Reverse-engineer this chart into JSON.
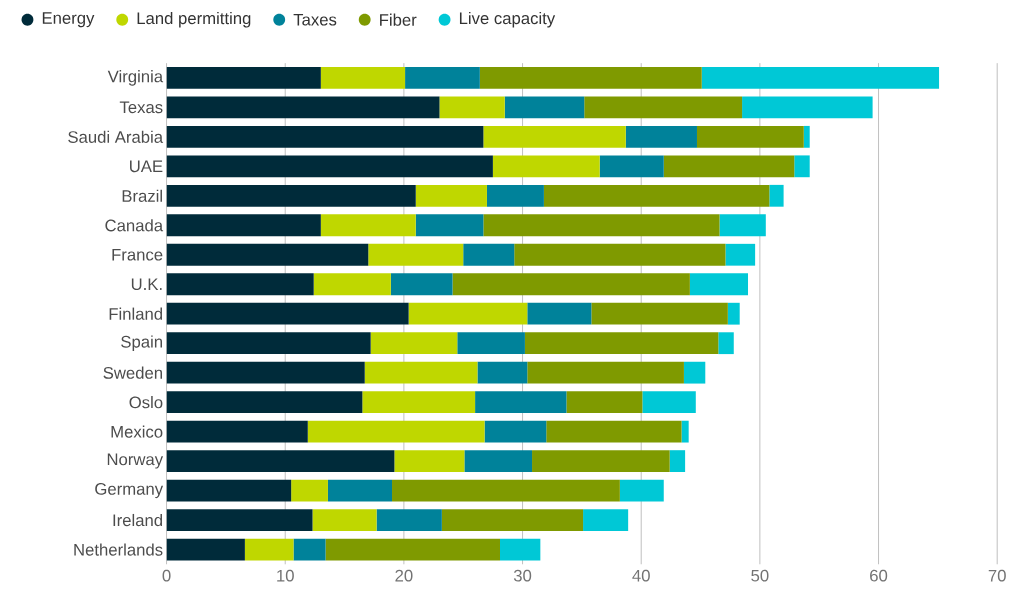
{
  "chart_data": {
    "type": "bar",
    "orientation": "horizontal",
    "stacked": true,
    "categories": [
      "Virginia",
      "Texas",
      "Saudi Arabia",
      "UAE",
      "Brazil",
      "Canada",
      "France",
      "U.K.",
      "Finland",
      "Spain",
      "Sweden",
      "Oslo",
      "Mexico",
      "Norway",
      "Germany",
      "Ireland",
      "Netherlands"
    ],
    "series": [
      {
        "name": "Energy",
        "color": "#002b3a",
        "values": [
          13.0,
          23.0,
          26.7,
          27.5,
          21.0,
          13.0,
          17.0,
          12.4,
          20.4,
          17.2,
          16.7,
          16.5,
          11.9,
          19.2,
          10.5,
          12.3,
          6.6
        ]
      },
      {
        "name": "Land permitting",
        "color": "#bfd700",
        "values": [
          7.1,
          5.5,
          12.0,
          9.0,
          6.0,
          8.0,
          8.0,
          6.5,
          10.0,
          7.3,
          9.5,
          9.5,
          14.9,
          5.9,
          3.1,
          5.4,
          4.1
        ]
      },
      {
        "name": "Taxes",
        "color": "#00829a",
        "values": [
          6.3,
          6.7,
          6.0,
          5.4,
          4.8,
          5.7,
          4.3,
          5.2,
          5.4,
          5.7,
          4.2,
          7.7,
          5.2,
          5.7,
          5.4,
          5.5,
          2.7
        ]
      },
      {
        "name": "Fiber",
        "color": "#7f9a00",
        "values": [
          18.7,
          13.3,
          9.0,
          11.0,
          19.0,
          19.9,
          17.8,
          20.0,
          11.5,
          16.3,
          13.2,
          6.4,
          11.4,
          11.6,
          19.2,
          11.9,
          14.7
        ]
      },
      {
        "name": "Live capacity",
        "color": "#00c8d6",
        "values": [
          20.0,
          11.0,
          0.5,
          1.3,
          1.2,
          3.9,
          2.5,
          4.9,
          1.0,
          1.3,
          1.8,
          4.5,
          0.6,
          1.3,
          3.7,
          3.8,
          3.4
        ]
      }
    ],
    "xlim": [
      0,
      70
    ],
    "xticks": [
      0,
      10,
      20,
      30,
      40,
      50,
      60,
      70
    ],
    "grid": "x",
    "legend": "top"
  }
}
